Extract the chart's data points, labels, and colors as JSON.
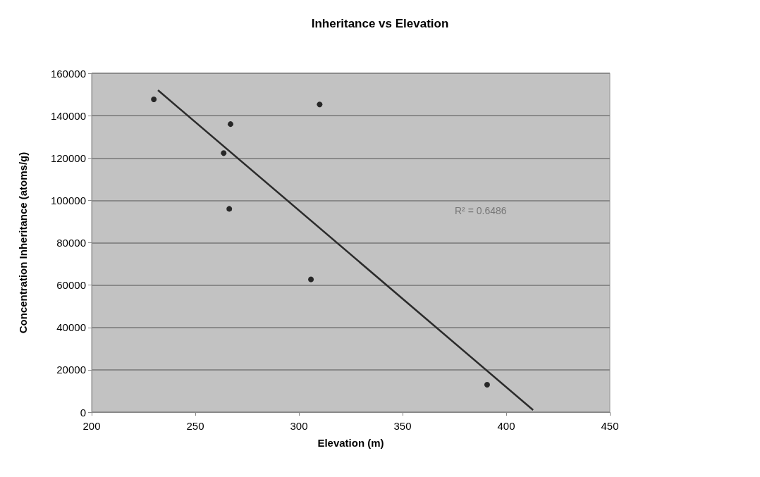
{
  "chart_data": {
    "type": "scatter",
    "title": "Inheritance vs Elevation",
    "xlabel": "Elevation (m)",
    "ylabel": "Concentration Inheritance (atoms/g)",
    "annotations": [
      "R² = 0.6486"
    ],
    "series": [
      {
        "color": "#000000",
        "marker": "circle",
        "x": [
          230,
          263.7,
          266.4,
          267,
          305.8,
          310,
          390.8
        ],
        "values": [
          147700,
          122300,
          96000,
          136000,
          62700,
          145300,
          13000
        ]
      },
      {
        "type": "line",
        "color": "#2b2b2b",
        "marker": "none",
        "line_style": "solid",
        "x": [
          232,
          413
        ],
        "values": [
          152000,
          1000
        ]
      }
    ],
    "xlim": [
      200,
      450
    ],
    "xticks": [
      200,
      250,
      300,
      350,
      400,
      450
    ],
    "ylim": [
      0,
      160000
    ],
    "yticks": [
      0,
      20000,
      40000,
      60000,
      80000,
      100000,
      120000,
      140000,
      160000
    ],
    "grid": "y"
  }
}
